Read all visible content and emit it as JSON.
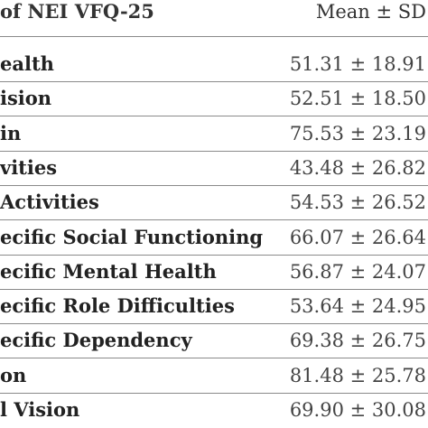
{
  "table": {
    "header": [
      "of NEI VFQ-25",
      "Mean ± SD"
    ],
    "rows": [
      [
        "ealth",
        "51.31 ± 18.91"
      ],
      [
        "ision",
        "52.51 ± 18.50"
      ],
      [
        "in",
        "75.53 ± 23.19"
      ],
      [
        "vities",
        "43.48 ± 26.82"
      ],
      [
        "Activities",
        "54.53 ± 26.52"
      ],
      [
        "ecific Social Functioning",
        "66.07 ± 26.64"
      ],
      [
        "ecific Mental Health",
        "56.87 ± 24.07"
      ],
      [
        "ecific Role Difficulties",
        "53.64 ± 24.95"
      ],
      [
        "ecific Dependency",
        "69.38 ± 26.75"
      ],
      [
        "on",
        "81.48 ± 25.78"
      ],
      [
        "l Vision",
        "69.90 ± 30.08"
      ]
    ]
  }
}
